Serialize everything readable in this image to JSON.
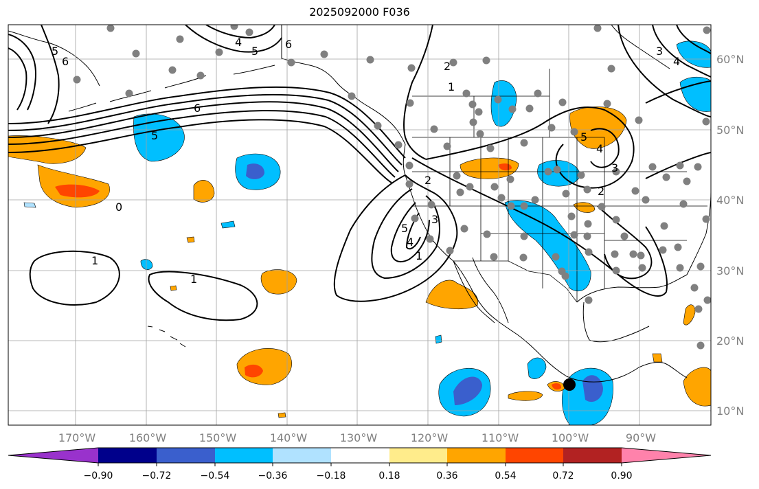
{
  "title": "2025092000 F036",
  "map": {
    "lat_labels": [
      "60°N",
      "50°N",
      "40°N",
      "30°N",
      "20°N",
      "10°N"
    ],
    "lon_labels": [
      "170°W",
      "160°W",
      "150°W",
      "140°W",
      "130°W",
      "120°W",
      "110°W",
      "100°W",
      "90°W"
    ],
    "contour_labels": [
      "6",
      "5",
      "4",
      "6",
      "5",
      "2",
      "1",
      "6",
      "5",
      "0",
      "1",
      "1",
      "2",
      "3",
      "4",
      "5",
      "1",
      "2",
      "3",
      "4",
      "5",
      "3",
      "4"
    ]
  },
  "colorbar": {
    "colors": [
      "#9932cc",
      "#00008b",
      "#3a5fcd",
      "#00bfff",
      "#b0e2ff",
      "#ffffff",
      "#ffec8b",
      "#ffa500",
      "#ff4500",
      "#b22222",
      "#ff82ab"
    ],
    "tick_labels": [
      "−0.90",
      "−0.72",
      "−0.54",
      "−0.36",
      "−0.18",
      "0.18",
      "0.36",
      "0.54",
      "0.72",
      "0.90"
    ]
  },
  "colors": {
    "land_outline": "#000000",
    "grid": "#a0a0a0",
    "station_marker": "#808080",
    "highlight_marker": "#000000"
  }
}
